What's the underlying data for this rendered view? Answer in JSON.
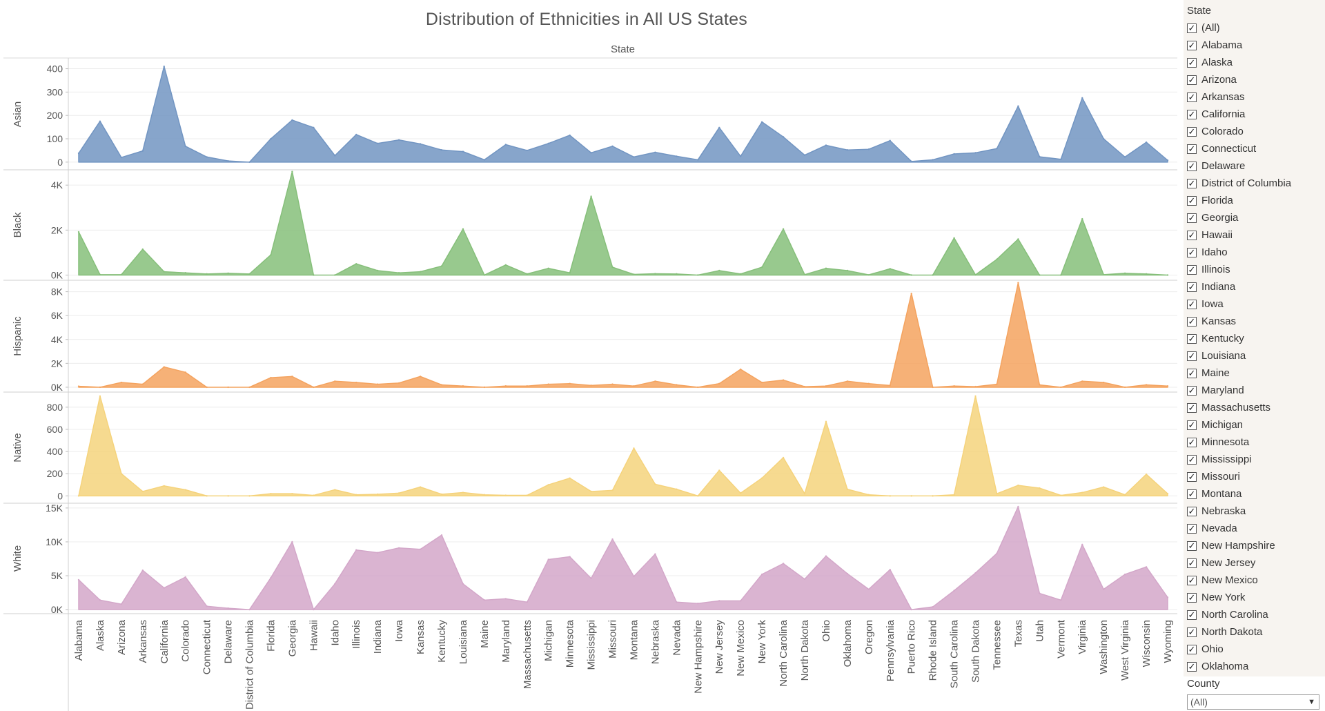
{
  "title": "Distribution of Ethnicities in All US States",
  "colors": {
    "Asian": "#7295c2",
    "Black": "#86bf7a",
    "Hispanic": "#f4a35f",
    "Native": "#f5d37c",
    "White": "#d3a7c9"
  },
  "chart_data": {
    "type": "area",
    "title": "Distribution of Ethnicities in All US States",
    "xlabel": "State",
    "x_axis_position": "bottom",
    "header_label": "State",
    "categories": [
      "Alabama",
      "Alaska",
      "Arizona",
      "Arkansas",
      "California",
      "Colorado",
      "Connecticut",
      "Delaware",
      "District of Columbia",
      "Florida",
      "Georgia",
      "Hawaii",
      "Idaho",
      "Illinois",
      "Indiana",
      "Iowa",
      "Kansas",
      "Kentucky",
      "Louisiana",
      "Maine",
      "Maryland",
      "Massachusetts",
      "Michigan",
      "Minnesota",
      "Mississippi",
      "Missouri",
      "Montana",
      "Nebraska",
      "Nevada",
      "New Hampshire",
      "New Jersey",
      "New Mexico",
      "New York",
      "North Carolina",
      "North Dakota",
      "Ohio",
      "Oklahoma",
      "Oregon",
      "Pennsylvania",
      "Puerto Rico",
      "Rhode Island",
      "South Carolina",
      "South Dakota",
      "Tennessee",
      "Texas",
      "Utah",
      "Vermont",
      "Virginia",
      "Washington",
      "West Virginia",
      "Wisconsin",
      "Wyoming"
    ],
    "series": [
      {
        "name": "Asian",
        "ylim": [
          -30,
          440
        ],
        "ticks": [
          0,
          100,
          200,
          300,
          400
        ],
        "tick_labels": [
          "0",
          "100",
          "200",
          "300",
          "400"
        ],
        "values": [
          38,
          175,
          20,
          48,
          410,
          68,
          22,
          5,
          0,
          100,
          180,
          148,
          28,
          118,
          80,
          95,
          78,
          52,
          45,
          10,
          75,
          50,
          80,
          115,
          40,
          68,
          22,
          42,
          25,
          10,
          148,
          25,
          172,
          108,
          30,
          72,
          52,
          55,
          92,
          3,
          10,
          35,
          40,
          58,
          240,
          23,
          12,
          275,
          100,
          22,
          85,
          8
        ]
      },
      {
        "name": "Black",
        "ylim": [
          -200,
          4650
        ],
        "ticks": [
          0,
          2000,
          4000
        ],
        "tick_labels": [
          "0K",
          "2K",
          "4K"
        ],
        "values": [
          1920,
          20,
          20,
          1150,
          150,
          100,
          50,
          80,
          50,
          900,
          4600,
          0,
          0,
          500,
          200,
          100,
          150,
          400,
          2050,
          0,
          450,
          50,
          300,
          100,
          3500,
          350,
          30,
          60,
          50,
          0,
          200,
          50,
          350,
          2050,
          20,
          300,
          200,
          10,
          280,
          0,
          0,
          1650,
          10,
          700,
          1600,
          0,
          0,
          2500,
          20,
          80,
          50,
          0
        ]
      },
      {
        "name": "Hispanic",
        "ylim": [
          -350,
          8900
        ],
        "ticks": [
          0,
          2000,
          4000,
          6000,
          8000
        ],
        "tick_labels": [
          "0K",
          "2K",
          "4K",
          "6K",
          "8K"
        ],
        "values": [
          80,
          0,
          400,
          250,
          1700,
          1250,
          0,
          0,
          0,
          800,
          900,
          0,
          500,
          400,
          250,
          350,
          900,
          200,
          100,
          0,
          100,
          100,
          250,
          300,
          150,
          250,
          100,
          500,
          200,
          0,
          300,
          1500,
          400,
          600,
          50,
          100,
          500,
          300,
          150,
          7850,
          0,
          100,
          50,
          250,
          8750,
          200,
          0,
          500,
          400,
          0,
          200,
          100
        ]
      },
      {
        "name": "Native",
        "ylim": [
          -60,
          930
        ],
        "ticks": [
          0,
          200,
          400,
          600,
          800
        ],
        "tick_labels": [
          "0",
          "200",
          "400",
          "600",
          "800"
        ],
        "values": [
          0,
          900,
          200,
          40,
          90,
          55,
          0,
          0,
          0,
          20,
          20,
          5,
          55,
          10,
          15,
          25,
          80,
          15,
          30,
          10,
          5,
          5,
          100,
          160,
          40,
          50,
          430,
          105,
          60,
          0,
          230,
          25,
          160,
          345,
          20,
          670,
          60,
          10,
          0,
          0,
          0,
          10,
          900,
          20,
          95,
          70,
          5,
          30,
          80,
          10,
          195,
          20
        ]
      },
      {
        "name": "White",
        "ylim": [
          -500,
          15600
        ],
        "ticks": [
          0,
          5000,
          10000,
          15000
        ],
        "tick_labels": [
          "0K",
          "5K",
          "10K",
          "15K"
        ],
        "values": [
          4400,
          1400,
          800,
          5800,
          3200,
          4800,
          500,
          200,
          0,
          4700,
          10000,
          0,
          3800,
          8800,
          8400,
          9100,
          8900,
          11000,
          3800,
          1400,
          1600,
          1100,
          7400,
          7800,
          4600,
          10400,
          4900,
          8200,
          1100,
          900,
          1300,
          1300,
          5200,
          6800,
          4500,
          7900,
          5300,
          3000,
          5900,
          0,
          400,
          2800,
          5400,
          8300,
          15200,
          2400,
          1400,
          9600,
          3000,
          5200,
          6300,
          1800
        ]
      }
    ]
  },
  "filter": {
    "state_title": "State",
    "states": [
      "(All)",
      "Alabama",
      "Alaska",
      "Arizona",
      "Arkansas",
      "California",
      "Colorado",
      "Connecticut",
      "Delaware",
      "District of Columbia",
      "Florida",
      "Georgia",
      "Hawaii",
      "Idaho",
      "Illinois",
      "Indiana",
      "Iowa",
      "Kansas",
      "Kentucky",
      "Louisiana",
      "Maine",
      "Maryland",
      "Massachusetts",
      "Michigan",
      "Minnesota",
      "Mississippi",
      "Missouri",
      "Montana",
      "Nebraska",
      "Nevada",
      "New Hampshire",
      "New Jersey",
      "New Mexico",
      "New York",
      "North Carolina",
      "North Dakota",
      "Ohio",
      "Oklahoma"
    ],
    "checkmark": "✓",
    "county_title": "County",
    "county_value": "(All)",
    "dropdown_arrow": "▼"
  }
}
